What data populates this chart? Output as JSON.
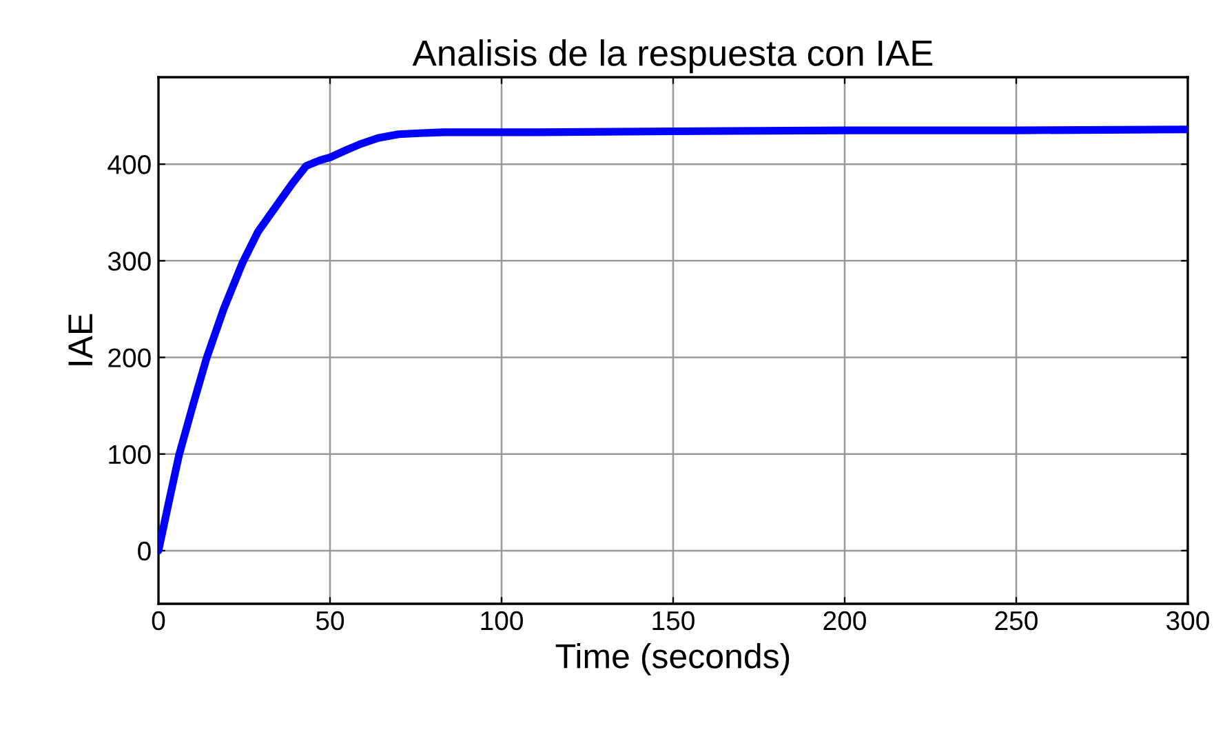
{
  "chart_data": {
    "type": "line",
    "title": "Analisis de la respuesta con IAE",
    "xlabel": "Time (seconds)",
    "ylabel": "IAE",
    "x": [
      0,
      3,
      6,
      10,
      14,
      19,
      24.5,
      29,
      34,
      39,
      43,
      47,
      50,
      55,
      59,
      64,
      70,
      76,
      83,
      95,
      110,
      150,
      200,
      250,
      300
    ],
    "series": [
      {
        "color": "#0000ff",
        "values": [
          0,
          50,
          99,
          150,
          199,
          250,
          298,
          330,
          355,
          380,
          398,
          404,
          407,
          415,
          421,
          427,
          431,
          432,
          433,
          433,
          433,
          434,
          435,
          435,
          436
        ]
      }
    ],
    "xlim": [
      0,
      300
    ],
    "xticks": [
      0,
      50,
      100,
      150,
      200,
      250,
      300
    ],
    "ylim": [
      -55,
      490
    ],
    "yticks": [
      0,
      100,
      200,
      300,
      400
    ],
    "grid": true,
    "line_style": "solid",
    "marker": "none"
  }
}
